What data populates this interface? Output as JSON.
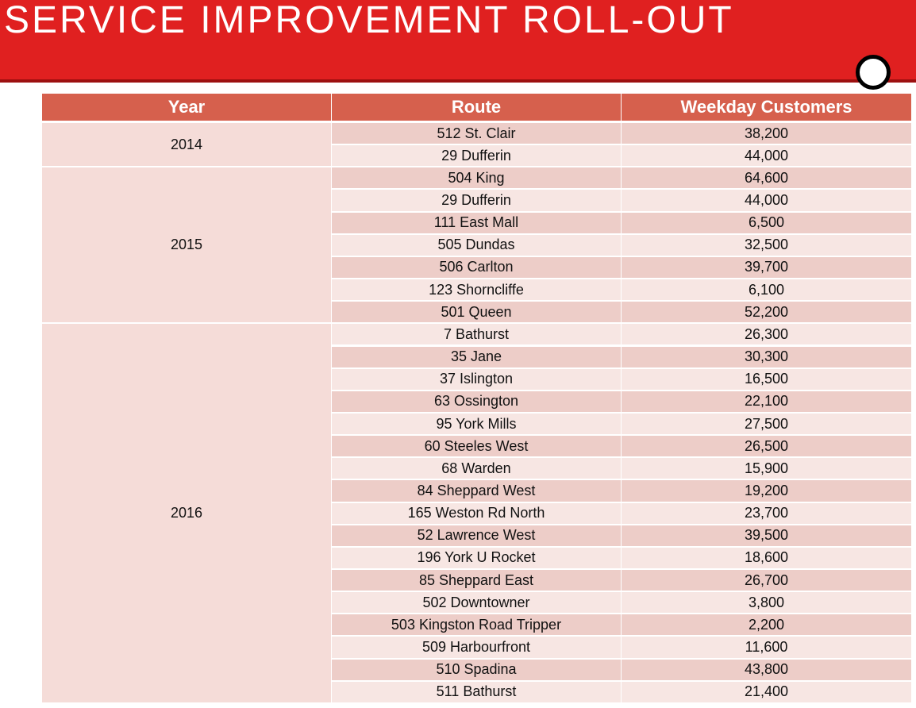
{
  "header": {
    "title": "SERVICE IMPROVEMENT ROLL-OUT"
  },
  "table": {
    "columns": [
      "Year",
      "Route",
      "Weekday Customers"
    ],
    "groups": [
      {
        "year": "2014",
        "rows": [
          [
            "512 St. Clair",
            "38,200"
          ],
          [
            "29 Dufferin",
            "44,000"
          ]
        ]
      },
      {
        "year": "2015",
        "rows": [
          [
            "504 King",
            "64,600"
          ],
          [
            "29 Dufferin",
            "44,000"
          ],
          [
            "111 East Mall",
            "6,500"
          ],
          [
            "505 Dundas",
            "32,500"
          ],
          [
            "506 Carlton",
            "39,700"
          ],
          [
            "123 Shorncliffe",
            "6,100"
          ],
          [
            "501 Queen",
            "52,200"
          ]
        ]
      },
      {
        "year": "2016",
        "rows": [
          [
            "7 Bathurst",
            "26,300"
          ],
          [
            "35 Jane",
            "30,300"
          ],
          [
            "37 Islington",
            "16,500"
          ],
          [
            "63 Ossington",
            "22,100"
          ],
          [
            "95 York Mills",
            "27,500"
          ],
          [
            "60 Steeles West",
            "26,500"
          ],
          [
            "68 Warden",
            "15,900"
          ],
          [
            "84 Sheppard West",
            "19,200"
          ],
          [
            "165 Weston Rd North",
            "23,700"
          ],
          [
            "52 Lawrence West",
            "39,500"
          ],
          [
            "196 York U Rocket",
            "18,600"
          ],
          [
            "85 Sheppard East",
            "26,700"
          ],
          [
            "502 Downtowner",
            "3,800"
          ],
          [
            "503 Kingston Road Tripper",
            "2,200"
          ],
          [
            "509 Harbourfront",
            "11,600"
          ],
          [
            "510 Spadina",
            "43,800"
          ],
          [
            "511 Bathurst",
            "21,400"
          ]
        ]
      }
    ]
  }
}
